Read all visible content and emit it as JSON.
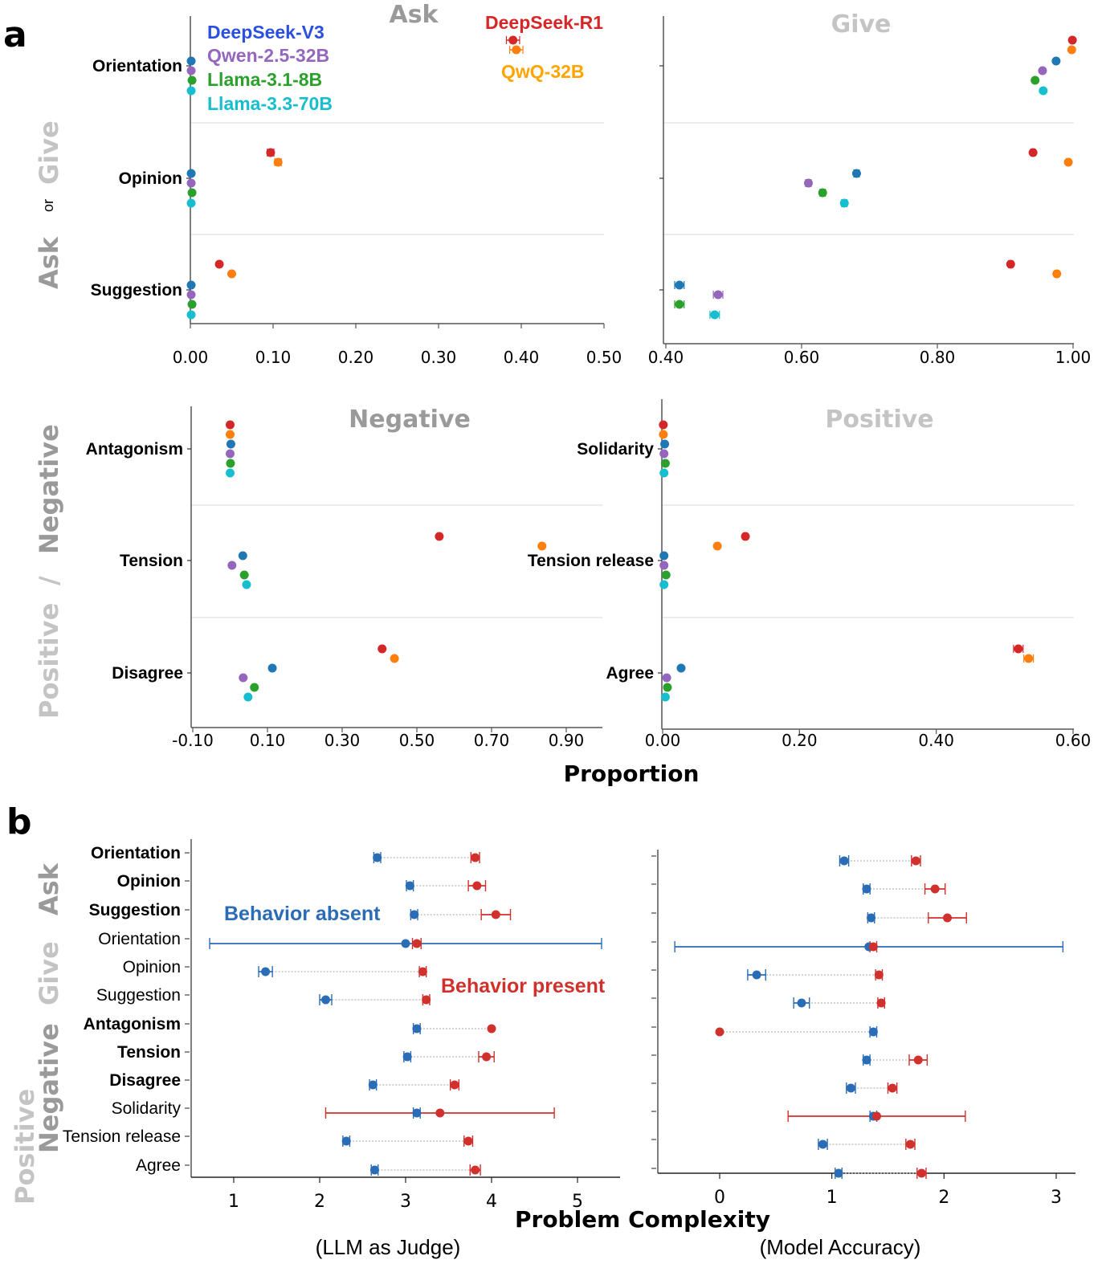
{
  "panel_labels": {
    "a": "a",
    "b": "b"
  },
  "side_labels": {
    "a_top": {
      "ask": "Ask",
      "or": "or",
      "give": "Give"
    },
    "a_bottom": {
      "positive": "Positive",
      "slash": "/",
      "negative": "Negative"
    },
    "b": {
      "ask": "Ask",
      "give": "Give",
      "negative": "Negative",
      "positive": "Positive"
    }
  },
  "legend": {
    "models": [
      {
        "name": "DeepSeek-V3",
        "color": "#1f77b4",
        "text_color": "#2b50e0"
      },
      {
        "name": "Qwen-2.5-32B",
        "color": "#9467bd",
        "text_color": "#9467bd"
      },
      {
        "name": "Llama-3.1-8B",
        "color": "#2ca02c",
        "text_color": "#2ca02c"
      },
      {
        "name": "Llama-3.3-70B",
        "color": "#17becf",
        "text_color": "#17becf"
      },
      {
        "name": "DeepSeek-R1",
        "color": "#d62728",
        "text_color": "#d62728"
      },
      {
        "name": "QwQ-32B",
        "color": "#ff7f0e",
        "text_color": "#ffa500"
      }
    ]
  },
  "axis_label_a": "Proportion",
  "axis_label_b": "Problem Complexity",
  "annotations_b": {
    "absent": "Behavior absent",
    "present": "Behavior present",
    "absent_color": "#2a6cb5",
    "present_color": "#d0312d"
  },
  "chart_data": [
    {
      "id": "ask",
      "type": "scatter",
      "title": "Ask",
      "title_color": "#9a9a9a",
      "xlabel": "",
      "xlim": [
        0,
        0.5
      ],
      "xticks": [
        0,
        0.1,
        0.2,
        0.3,
        0.4,
        0.5
      ],
      "xtick_labels": [
        "0.00",
        "0.10",
        "0.20",
        "0.30",
        "0.40",
        "0.50"
      ],
      "categories": [
        "Orientation",
        "Opinion",
        "Suggestion"
      ],
      "series_order": [
        "DeepSeek-R1",
        "QwQ-32B",
        "DeepSeek-V3",
        "Qwen-2.5-32B",
        "Llama-3.1-8B",
        "Llama-3.3-70B"
      ],
      "series": [
        {
          "name": "DeepSeek-R1",
          "values": [
            0.39,
            0.097,
            0.035
          ],
          "err": [
            0.008,
            0.004,
            0.002
          ]
        },
        {
          "name": "QwQ-32B",
          "values": [
            0.394,
            0.106,
            0.05
          ],
          "err": [
            0.008,
            0.004,
            0.002
          ]
        },
        {
          "name": "DeepSeek-V3",
          "values": [
            0.001,
            0.001,
            0.001
          ],
          "err": [
            0,
            0,
            0
          ]
        },
        {
          "name": "Qwen-2.5-32B",
          "values": [
            0.001,
            0.001,
            0.001
          ],
          "err": [
            0,
            0,
            0
          ]
        },
        {
          "name": "Llama-3.1-8B",
          "values": [
            0.002,
            0.002,
            0.002
          ],
          "err": [
            0,
            0,
            0
          ]
        },
        {
          "name": "Llama-3.3-70B",
          "values": [
            0.001,
            0.001,
            0.001
          ],
          "err": [
            0,
            0,
            0
          ]
        }
      ],
      "show_category_labels": true
    },
    {
      "id": "give",
      "type": "scatter",
      "title": "Give",
      "title_color": "#c4c4c4",
      "xlim": [
        0.4,
        1.0
      ],
      "xticks": [
        0.4,
        0.6,
        0.8,
        1.0
      ],
      "xtick_labels": [
        "0.40",
        "0.60",
        "0.80",
        "1.00"
      ],
      "categories": [
        "Orientation",
        "Opinion",
        "Suggestion"
      ],
      "series_order": [
        "DeepSeek-R1",
        "QwQ-32B",
        "DeepSeek-V3",
        "Qwen-2.5-32B",
        "Llama-3.1-8B",
        "Llama-3.3-70B"
      ],
      "series": [
        {
          "name": "DeepSeek-R1",
          "values": [
            0.999,
            0.941,
            0.908
          ],
          "err": [
            0,
            0.003,
            0.003
          ]
        },
        {
          "name": "QwQ-32B",
          "values": [
            0.998,
            0.993,
            0.976
          ],
          "err": [
            0,
            0.003,
            0.003
          ]
        },
        {
          "name": "DeepSeek-V3",
          "values": [
            0.975,
            0.681,
            0.42
          ],
          "err": [
            0,
            0.004,
            0.007
          ]
        },
        {
          "name": "Qwen-2.5-32B",
          "values": [
            0.955,
            0.61,
            0.477
          ],
          "err": [
            0,
            0.004,
            0.007
          ]
        },
        {
          "name": "Llama-3.1-8B",
          "values": [
            0.944,
            0.631,
            0.42
          ],
          "err": [
            0,
            0.004,
            0.007
          ]
        },
        {
          "name": "Llama-3.3-70B",
          "values": [
            0.956,
            0.663,
            0.472
          ],
          "err": [
            0,
            0.004,
            0.007
          ]
        }
      ],
      "show_category_labels": false
    },
    {
      "id": "negative",
      "type": "scatter",
      "title": "Negative",
      "title_color": "#9a9a9a",
      "xlim": [
        -0.1,
        0.99
      ],
      "xticks": [
        -0.1,
        0.1,
        0.3,
        0.5,
        0.7,
        0.9
      ],
      "xtick_labels": [
        "-0.10",
        "0.10",
        "0.30",
        "0.50",
        "0.70",
        "0.90"
      ],
      "categories": [
        "Antagonism",
        "Tension",
        "Disagree"
      ],
      "series_order": [
        "DeepSeek-R1",
        "QwQ-32B",
        "DeepSeek-V3",
        "Qwen-2.5-32B",
        "Llama-3.1-8B",
        "Llama-3.3-70B"
      ],
      "series": [
        {
          "name": "DeepSeek-R1",
          "values": [
            0.0,
            0.56,
            0.407
          ],
          "err": [
            0,
            0,
            0
          ]
        },
        {
          "name": "QwQ-32B",
          "values": [
            0.0,
            0.835,
            0.44
          ],
          "err": [
            0,
            0,
            0
          ]
        },
        {
          "name": "DeepSeek-V3",
          "values": [
            0.002,
            0.034,
            0.113
          ],
          "err": [
            0,
            0,
            0
          ]
        },
        {
          "name": "Qwen-2.5-32B",
          "values": [
            0.0,
            0.005,
            0.035
          ],
          "err": [
            0,
            0,
            0
          ]
        },
        {
          "name": "Llama-3.1-8B",
          "values": [
            0.001,
            0.038,
            0.065
          ],
          "err": [
            0,
            0,
            0
          ]
        },
        {
          "name": "Llama-3.3-70B",
          "values": [
            0.0,
            0.044,
            0.048
          ],
          "err": [
            0,
            0,
            0
          ]
        }
      ],
      "show_category_labels": true
    },
    {
      "id": "positive",
      "type": "scatter",
      "title": "Positive",
      "title_color": "#c4c4c4",
      "xlim": [
        0,
        0.6
      ],
      "xticks": [
        0,
        0.2,
        0.4,
        0.6
      ],
      "xtick_labels": [
        "0.00",
        "0.20",
        "0.40",
        "0.60"
      ],
      "categories": [
        "Solidarity",
        "Tension release",
        "Agree"
      ],
      "series_order": [
        "DeepSeek-R1",
        "QwQ-32B",
        "DeepSeek-V3",
        "Qwen-2.5-32B",
        "Llama-3.1-8B",
        "Llama-3.3-70B"
      ],
      "series": [
        {
          "name": "DeepSeek-R1",
          "values": [
            0.001,
            0.121,
            0.52
          ],
          "err": [
            0,
            0.003,
            0.007
          ]
        },
        {
          "name": "QwQ-32B",
          "values": [
            0.001,
            0.08,
            0.535
          ],
          "err": [
            0,
            0,
            0.007
          ]
        },
        {
          "name": "DeepSeek-V3",
          "values": [
            0.003,
            0.002,
            0.027
          ],
          "err": [
            0,
            0,
            0
          ]
        },
        {
          "name": "Qwen-2.5-32B",
          "values": [
            0.002,
            0.002,
            0.006
          ],
          "err": [
            0,
            0,
            0
          ]
        },
        {
          "name": "Llama-3.1-8B",
          "values": [
            0.004,
            0.005,
            0.007
          ],
          "err": [
            0,
            0,
            0
          ]
        },
        {
          "name": "Llama-3.3-70B",
          "values": [
            0.002,
            0.002,
            0.004
          ],
          "err": [
            0,
            0,
            0
          ]
        }
      ],
      "show_category_labels": true
    },
    {
      "id": "llm_judge",
      "type": "scatter",
      "title": "",
      "xlabel": "(LLM as Judge)",
      "xlim": [
        0.5,
        5.5
      ],
      "xticks": [
        1,
        2,
        3,
        4,
        5
      ],
      "xtick_labels": [
        "1",
        "2",
        "3",
        "4",
        "5"
      ],
      "categories": [
        "Orientation",
        "Opinion",
        "Suggestion",
        "Orientation",
        "Opinion",
        "Suggestion",
        "Antagonism",
        "Tension",
        "Disagree",
        "Solidarity",
        "Tension release",
        "Agree"
      ],
      "category_bold": [
        true,
        true,
        true,
        false,
        false,
        false,
        true,
        true,
        true,
        false,
        false,
        false
      ],
      "series": [
        {
          "name": "Behavior absent",
          "color": "#2a6cb5",
          "values": [
            2.67,
            3.05,
            3.1,
            3.0,
            1.37,
            2.07,
            3.13,
            3.02,
            2.62,
            3.13,
            2.31,
            2.64
          ],
          "err": [
            0.04,
            0.04,
            0.04,
            2.28,
            0.08,
            0.07,
            0.04,
            0.04,
            0.04,
            0.04,
            0.04,
            0.04
          ]
        },
        {
          "name": "Behavior present",
          "color": "#d0312d",
          "values": [
            3.81,
            3.83,
            4.05,
            3.13,
            3.2,
            3.24,
            4.0,
            3.94,
            3.57,
            3.4,
            3.73,
            3.81
          ],
          "err": [
            0.05,
            0.1,
            0.17,
            0.05,
            0.04,
            0.04,
            0.0,
            0.09,
            0.05,
            1.33,
            0.05,
            0.06
          ]
        }
      ]
    },
    {
      "id": "model_accuracy",
      "type": "scatter",
      "title": "",
      "xlabel": "(Model Accuracy)",
      "xlim": [
        -0.57,
        3.23
      ],
      "xticks": [
        0,
        1,
        2,
        3
      ],
      "xtick_labels": [
        "0",
        "1",
        "2",
        "3"
      ],
      "categories": [
        "Orientation",
        "Opinion",
        "Suggestion",
        "Orientation",
        "Opinion",
        "Suggestion",
        "Antagonism",
        "Tension",
        "Disagree",
        "Solidarity",
        "Tension release",
        "Agree"
      ],
      "series": [
        {
          "name": "Behavior absent",
          "color": "#2a6cb5",
          "values": [
            1.11,
            1.31,
            1.35,
            1.33,
            0.33,
            0.73,
            1.37,
            1.31,
            1.17,
            1.37,
            0.92,
            1.06
          ],
          "err": [
            0.04,
            0.03,
            0.03,
            1.73,
            0.08,
            0.07,
            0.03,
            0.03,
            0.04,
            0.03,
            0.04,
            0.03
          ]
        },
        {
          "name": "Behavior present",
          "color": "#d0312d",
          "values": [
            1.75,
            1.92,
            2.03,
            1.37,
            1.42,
            1.44,
            0.0,
            1.77,
            1.54,
            1.4,
            1.7,
            1.8
          ],
          "err": [
            0.04,
            0.09,
            0.17,
            0.03,
            0.03,
            0.03,
            0.0,
            0.08,
            0.04,
            0.79,
            0.04,
            0.04
          ]
        }
      ]
    }
  ]
}
